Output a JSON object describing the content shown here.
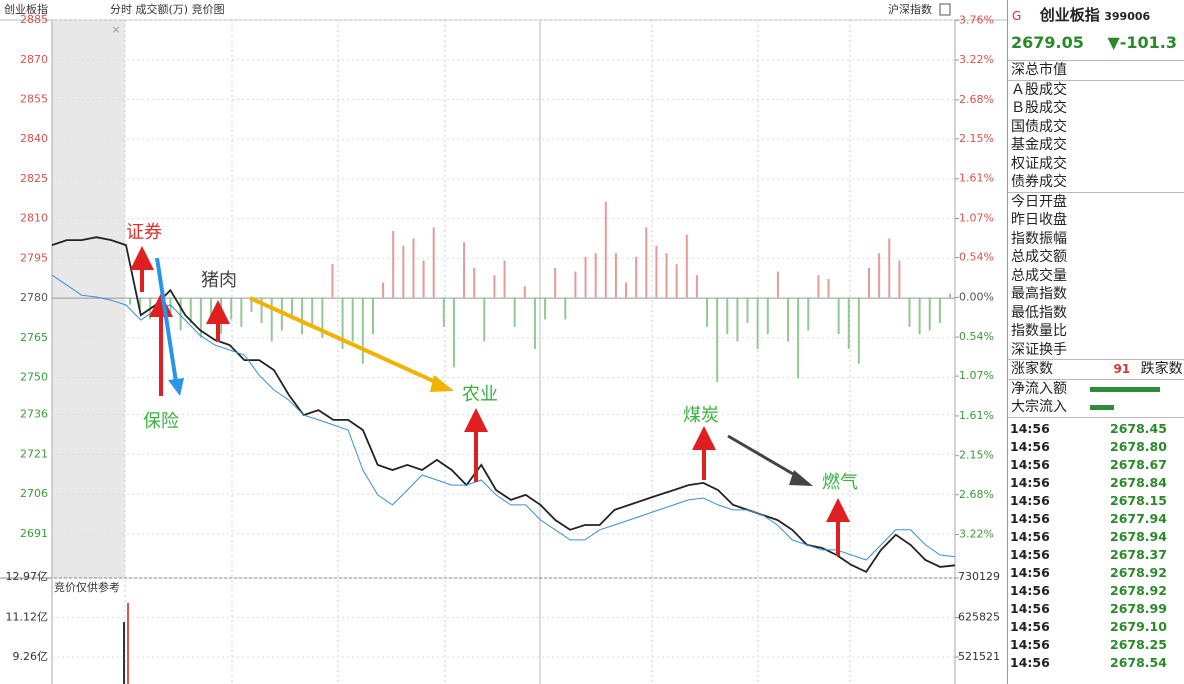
{
  "header": {
    "title": "创业板指",
    "tabs": "分时 成交额(万) 竞价图",
    "right": "沪深指数",
    "close": "×",
    "volume_note": "竞价仅供参考"
  },
  "chart_data": {
    "type": "line",
    "ylim": [
      2674.3,
      2888.8
    ],
    "yticks": [
      2885,
      2870,
      2855,
      2840,
      2825,
      2810,
      2795,
      2780,
      2765,
      2750,
      2736,
      2721,
      2706,
      2691
    ],
    "y2lim": [
      -3.81,
      3.9
    ],
    "y2ticks": [
      {
        "value": 3.76,
        "label": "3.76%"
      },
      {
        "value": 3.22,
        "label": "3.22%"
      },
      {
        "value": 2.68,
        "label": "2.68%"
      },
      {
        "value": 2.15,
        "label": "2.15%"
      },
      {
        "value": 1.61,
        "label": "1.61%"
      },
      {
        "value": 1.07,
        "label": "1.07%"
      },
      {
        "value": 0.54,
        "label": "0.54%"
      },
      {
        "value": 0,
        "label": "0.00%"
      },
      {
        "value": -0.54,
        "label": "0.54%"
      },
      {
        "value": -1.07,
        "label": "1.07%"
      },
      {
        "value": -1.61,
        "label": "1.61%"
      },
      {
        "value": -2.15,
        "label": "2.15%"
      },
      {
        "value": -2.68,
        "label": "2.68%"
      },
      {
        "value": -3.22,
        "label": "3.22%"
      }
    ],
    "series": [
      {
        "color": "#222222",
        "values": [
          2800.0,
          2801.9,
          2801.9,
          2803.0,
          2801.9,
          2800.0,
          2773.6,
          2777.4,
          2783.0,
          2773.6,
          2767.9,
          2764.2,
          2762.3,
          2756.6,
          2756.6,
          2752.8,
          2743.4,
          2735.8,
          2737.7,
          2734.0,
          2734.0,
          2730.2,
          2717.0,
          2715.1,
          2717.0,
          2715.1,
          2718.9,
          2715.1,
          2709.4,
          2717.0,
          2707.5,
          2703.8,
          2705.7,
          2701.9,
          2696.2,
          2692.5,
          2694.3,
          2694.3,
          2700.0,
          2701.9,
          2703.8,
          2705.7,
          2707.5,
          2709.4,
          2710.2,
          2707.5,
          2701.9,
          2700.0,
          2698.1,
          2696.2,
          2692.5,
          2686.8,
          2685.7,
          2683.0,
          2679.2,
          2676.6,
          2684.9,
          2690.6,
          2686.8,
          2681.1,
          2678.5,
          2679.1
        ]
      },
      {
        "color": "#3a8fd6",
        "values": [
          2788.7,
          2784.9,
          2781.1,
          2780.4,
          2779.2,
          2777.4,
          2771.7,
          2775.5,
          2777.4,
          2771.7,
          2766.0,
          2762.3,
          2760.4,
          2758.5,
          2750.9,
          2745.3,
          2741.5,
          2735.8,
          2734.0,
          2732.1,
          2730.2,
          2715.1,
          2705.7,
          2701.9,
          2707.5,
          2713.2,
          2711.3,
          2709.4,
          2709.4,
          2711.3,
          2705.7,
          2701.9,
          2701.9,
          2696.2,
          2692.5,
          2688.7,
          2688.7,
          2692.5,
          2694.3,
          2696.2,
          2698.1,
          2700.0,
          2701.9,
          2703.8,
          2704.5,
          2701.9,
          2700.0,
          2700.0,
          2698.1,
          2694.3,
          2688.7,
          2686.8,
          2684.9,
          2684.9,
          2683.0,
          2681.1,
          2686.8,
          2692.5,
          2692.5,
          2686.8,
          2683.0,
          2682.3
        ]
      },
      {
        "type": "bar",
        "axis": "y2",
        "colors": [
          "#e59a9a",
          "#93c893"
        ],
        "values": [
          -0.1,
          -0.15,
          -0.3,
          -0.4,
          -0.2,
          -0.45,
          -0.35,
          -0.55,
          -0.25,
          -0.5,
          -0.3,
          -0.4,
          -0.2,
          -0.35,
          -0.6,
          -0.45,
          -0.3,
          -0.5,
          -0.4,
          -0.55,
          0.45,
          -0.7,
          -0.6,
          -0.9,
          -0.5,
          0.2,
          0.9,
          0.7,
          0.8,
          0.5,
          0.95,
          -0.4,
          -0.95,
          0.75,
          0.4,
          -0.6,
          0.3,
          0.5,
          -0.4,
          0.15,
          -0.7,
          -0.3,
          0.4,
          -0.3,
          0.35,
          0.55,
          0.6,
          1.3,
          0.6,
          0.2,
          0.55,
          0.95,
          0.7,
          0.6,
          0.45,
          0.85,
          0.3,
          -0.4,
          -1.15,
          -0.5,
          -0.6,
          -0.35,
          -0.7,
          -0.5,
          0.35,
          -0.6,
          -1.1,
          -0.45,
          0.3,
          0.25,
          -0.5,
          -0.7,
          -0.9,
          0.4,
          0.6,
          0.8,
          0.5,
          -0.4,
          -0.5,
          -0.45,
          -0.35,
          0.05
        ]
      }
    ],
    "vlim": [
      7.99,
      12.97
    ],
    "vticks": [
      {
        "value": 12.97,
        "label": "12.97亿"
      },
      {
        "value": 11.12,
        "label": "11.12亿"
      },
      {
        "value": 9.26,
        "label": "9.26亿"
      }
    ],
    "v2lim": [
      450225,
      730129
    ],
    "v2ticks": [
      730129,
      625825,
      521521
    ],
    "volume": {
      "colors": [
        "#333333",
        "#e05555"
      ],
      "values": [
        10.9,
        11.8
      ]
    },
    "annotations": [
      {
        "text": "证券",
        "color": "#e03030"
      },
      {
        "text": "保险",
        "color": "#3cb043"
      },
      {
        "text": "猪肉",
        "color": "#444444"
      },
      {
        "text": "农业",
        "color": "#3cb043"
      },
      {
        "text": "煤炭",
        "color": "#3cb043"
      },
      {
        "text": "燃气",
        "color": "#3cb043"
      }
    ]
  },
  "panel": {
    "marker": "G",
    "name": "创业板指",
    "code": "399006",
    "price": "2679.05",
    "change": "▼-101.3",
    "groups": [
      [
        "深总市值"
      ],
      [
        "Ａ股成交",
        "Ｂ股成交",
        "国债成交",
        "基金成交",
        "权证成交",
        "债券成交"
      ],
      [
        "今日开盘",
        "昨日收盘",
        "指数振幅",
        "总成交额",
        "总成交量",
        "最高指数",
        "最低指数",
        "指数量比",
        "深证换手"
      ]
    ],
    "breadth": {
      "up_label": "涨家数",
      "up": "91",
      "down_label": "跌家数"
    },
    "flows": [
      "净流入额",
      "大宗流入"
    ],
    "ticks": [
      {
        "time": "14:56",
        "price": "2678.45"
      },
      {
        "time": "14:56",
        "price": "2678.80"
      },
      {
        "time": "14:56",
        "price": "2678.67"
      },
      {
        "time": "14:56",
        "price": "2678.84"
      },
      {
        "time": "14:56",
        "price": "2678.15"
      },
      {
        "time": "14:56",
        "price": "2677.94"
      },
      {
        "time": "14:56",
        "price": "2678.94"
      },
      {
        "time": "14:56",
        "price": "2678.37"
      },
      {
        "time": "14:56",
        "price": "2678.92"
      },
      {
        "time": "14:56",
        "price": "2678.92"
      },
      {
        "time": "14:56",
        "price": "2678.99"
      },
      {
        "time": "14:56",
        "price": "2679.10"
      },
      {
        "time": "14:56",
        "price": "2678.25"
      },
      {
        "time": "14:56",
        "price": "2678.54"
      }
    ]
  }
}
